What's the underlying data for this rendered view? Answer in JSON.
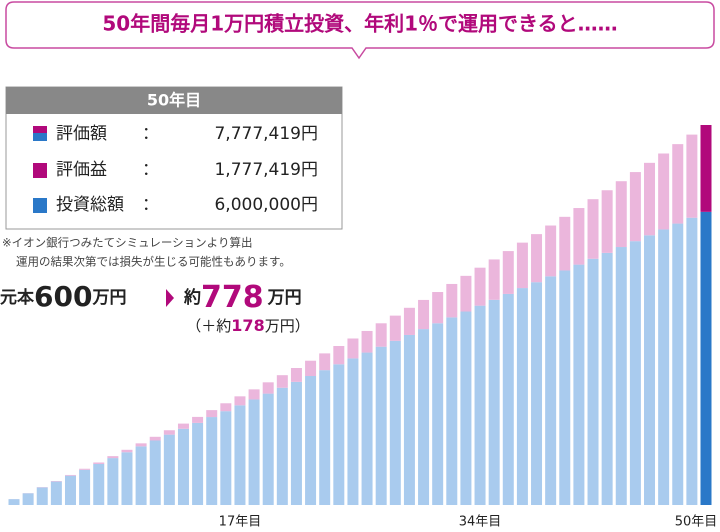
{
  "callout": "50年間毎月1万円積立投資、年利1％で運用できると……",
  "summary": {
    "title": "50年目",
    "separator": "：",
    "rows": [
      {
        "label": "評価額",
        "value": "7,777,419円"
      },
      {
        "value": "1,777,419円"
      },
      {
        "value": "6,000,000円"
      }
    ]
  },
  "notes": [
    "※イオン銀行つみたてシミュレーションより算出",
    "運用の結果次第では損失が生じる可能性もあります。"
  ],
  "headline": {
    "principal_label": "元本",
    "principal": "600",
    "unit": "万円",
    "approx": "約",
    "result": "778",
    "gain_open": "（＋約",
    "gain": "178",
    "gain_close": "万円）"
  },
  "chart_data": {
    "type": "bar",
    "stacked": true,
    "categories": [
      null,
      null,
      null,
      null,
      null,
      null,
      null,
      null,
      null,
      null,
      null,
      null,
      null,
      null,
      null,
      null,
      "17年目",
      null,
      null,
      null,
      null,
      null,
      null,
      null,
      null,
      null,
      null,
      null,
      null,
      null,
      null,
      null,
      null,
      "34年目",
      null,
      null,
      null,
      null,
      null,
      null,
      null,
      null,
      null,
      null,
      null,
      null,
      null,
      null,
      null,
      "50年目"
    ],
    "series": [
      {
        "name": "投資総額",
        "color": "#a9cbee",
        "highlight_color": "#2a78c8",
        "values": [
          120000,
          240000,
          360000,
          480000,
          600000,
          720000,
          840000,
          960000,
          1080000,
          1200000,
          1320000,
          1440000,
          1560000,
          1680000,
          1800000,
          1920000,
          2040000,
          2160000,
          2280000,
          2400000,
          2520000,
          2640000,
          2760000,
          2880000,
          3000000,
          3120000,
          3240000,
          3360000,
          3480000,
          3600000,
          3720000,
          3840000,
          3960000,
          4080000,
          4200000,
          4320000,
          4440000,
          4560000,
          4680000,
          4800000,
          4920000,
          5040000,
          5160000,
          5280000,
          5400000,
          5520000,
          5640000,
          5760000,
          5880000,
          6000000
        ]
      },
      {
        "name": "評価益",
        "color": "#ebb6dc",
        "highlight_color": "#b1097b",
        "values": [
          1000,
          3000,
          6000,
          10000,
          15000,
          22000,
          30000,
          40000,
          50000,
          62000,
          76000,
          90000,
          106000,
          123000,
          142000,
          162000,
          184000,
          207000,
          231000,
          257000,
          284000,
          313000,
          343000,
          374000,
          408000,
          442000,
          479000,
          516000,
          556000,
          597000,
          639000,
          684000,
          730000,
          777000,
          826000,
          877000,
          930000,
          984000,
          1040000,
          1098000,
          1158000,
          1219000,
          1282000,
          1347000,
          1414000,
          1483000,
          1554000,
          1626000,
          1701000,
          1777419
        ]
      }
    ]
  }
}
